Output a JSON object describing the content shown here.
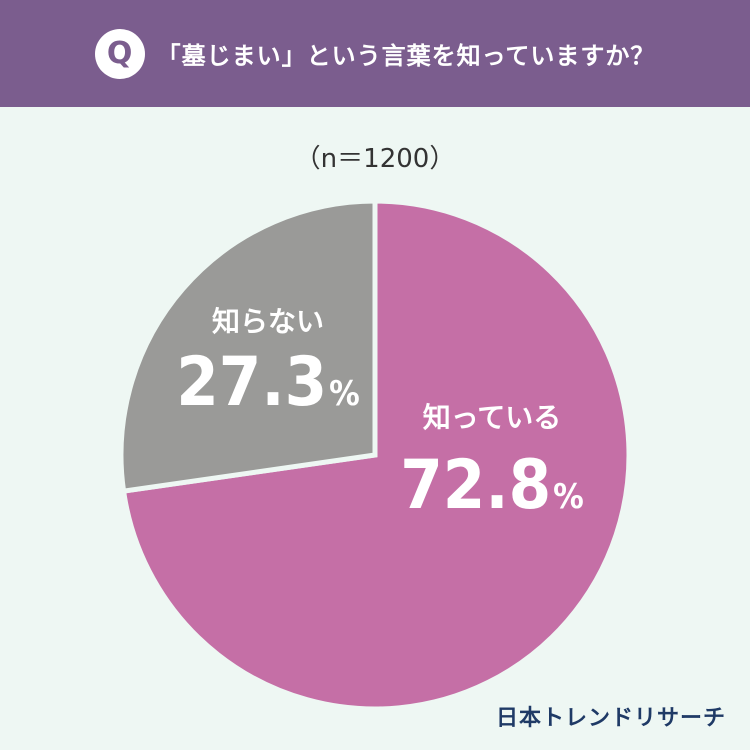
{
  "header": {
    "badge": "Q",
    "question": "「墓じまい」という言葉を知っていますか？"
  },
  "sample_size": "（n＝1200）",
  "colors": {
    "header_bg": "#7b5d8e",
    "badge_bg": "#ffffff",
    "badge_text": "#7b5d8e",
    "background": "#eef7f3",
    "know": "#c56fa6",
    "dont_know": "#9a9a98",
    "separator": "#eef7f3",
    "label_text": "#ffffff",
    "logo_text": "#1f3a66"
  },
  "chart_data": {
    "type": "pie",
    "title": "",
    "slices": [
      {
        "label": "知っている",
        "value": 72.8,
        "display_value": "72.8",
        "unit": "%",
        "color": "#c56fa6"
      },
      {
        "label": "知らない",
        "value": 27.3,
        "display_value": "27.3",
        "unit": "%",
        "color": "#9a9a98"
      }
    ]
  },
  "logo": "日本トレンドリサーチ"
}
